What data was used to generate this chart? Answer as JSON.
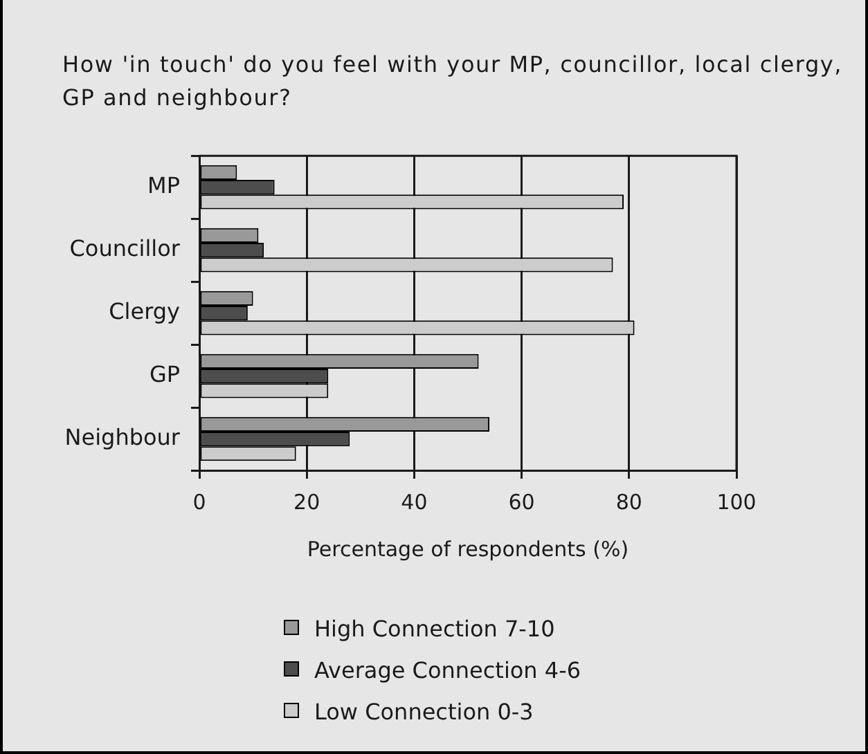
{
  "chart_data": {
    "type": "bar",
    "orientation": "horizontal",
    "title": "How 'in touch' do you feel with your MP, councillor, local clergy, GP and neighbour?",
    "xlabel": "Percentage of respondents (%)",
    "categories": [
      "MP",
      "Councillor",
      "Clergy",
      "GP",
      "Neighbour"
    ],
    "series": [
      {
        "name": "High Connection 7-10",
        "color": "#999999",
        "values": [
          7,
          11,
          10,
          52,
          54
        ]
      },
      {
        "name": "Average Connection 4-6",
        "color": "#4d4d4d",
        "values": [
          14,
          12,
          9,
          24,
          28
        ]
      },
      {
        "name": "Low Connection 0-3",
        "color": "#cccccc",
        "values": [
          79,
          77,
          81,
          24,
          18
        ]
      }
    ],
    "xlim": [
      0,
      100
    ],
    "xticks": [
      0,
      20,
      40,
      60,
      80,
      100
    ],
    "grid": "x",
    "legend": "bottom"
  }
}
